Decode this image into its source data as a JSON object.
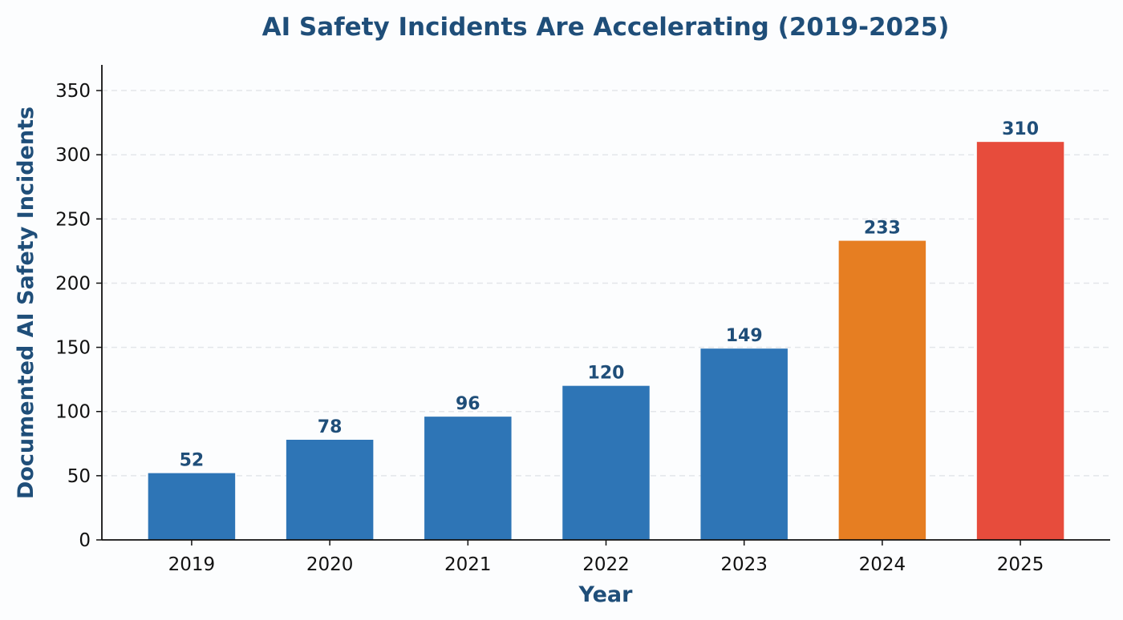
{
  "chart_data": {
    "type": "bar",
    "title": "AI Safety Incidents Are Accelerating (2019-2025)",
    "xlabel": "Year",
    "ylabel": "Documented AI Safety Incidents",
    "categories": [
      "2019",
      "2020",
      "2021",
      "2022",
      "2023",
      "2024",
      "2025"
    ],
    "values": [
      52,
      78,
      96,
      120,
      149,
      233,
      310
    ],
    "data_labels": [
      "52",
      "78",
      "96",
      "120",
      "149",
      "233",
      "310"
    ],
    "bar_colors": [
      "#2e75b6",
      "#2e75b6",
      "#2e75b6",
      "#2e75b6",
      "#2e75b6",
      "#e67e22",
      "#e74c3c"
    ],
    "ylim": [
      0,
      370
    ],
    "yticks": [
      0,
      50,
      100,
      150,
      200,
      250,
      300,
      350
    ],
    "ytick_labels": [
      "0",
      "50",
      "100",
      "150",
      "200",
      "250",
      "300",
      "350"
    ],
    "grid": "horizontal dashed",
    "legend": "none"
  },
  "colors": {
    "title": "#1f4e79",
    "value_labels": "#1f4e79",
    "grid": "#e3e6ea",
    "axis": "#111111"
  }
}
